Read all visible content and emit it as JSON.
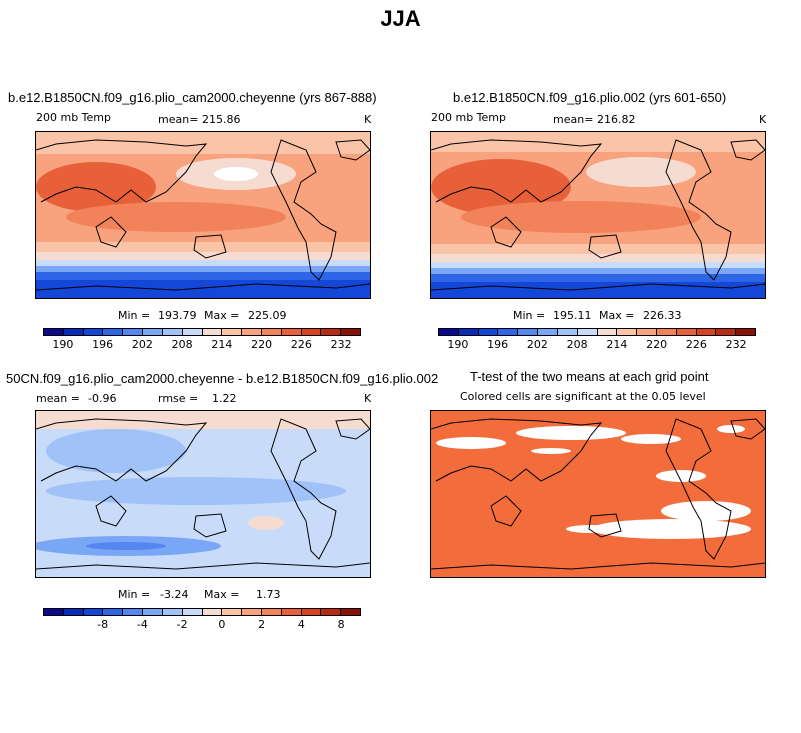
{
  "chart_data": [
    {
      "type": "heatmap",
      "panel": "top-left",
      "title": "b.e12.B1850CN.f09_g16.plio_cam2000.cheyenne (yrs 867-888)",
      "left_label": "200 mb Temp",
      "center_label": "mean=",
      "center_value": "215.86",
      "units": "K",
      "min_label": "Min =",
      "min_value": "193.79",
      "max_label": "Max =",
      "max_value": "225.09",
      "colorbar_ticks": [
        "190",
        "196",
        "202",
        "208",
        "214",
        "220",
        "226",
        "232"
      ],
      "colorbar_levels": [
        187,
        190,
        193,
        196,
        199,
        202,
        205,
        208,
        211,
        214,
        217,
        220,
        223,
        226,
        229,
        232,
        235
      ]
    },
    {
      "type": "heatmap",
      "panel": "top-right",
      "title": "b.e12.B1850CN.f09_g16.plio.002 (yrs 601-650)",
      "left_label": "200 mb Temp",
      "center_label": "mean=",
      "center_value": "216.82",
      "units": "K",
      "min_label": "Min =",
      "min_value": "195.11",
      "max_label": "Max =",
      "max_value": "226.33",
      "colorbar_ticks": [
        "190",
        "196",
        "202",
        "208",
        "214",
        "220",
        "226",
        "232"
      ],
      "colorbar_levels": [
        187,
        190,
        193,
        196,
        199,
        202,
        205,
        208,
        211,
        214,
        217,
        220,
        223,
        226,
        229,
        232,
        235
      ]
    },
    {
      "type": "heatmap",
      "panel": "bottom-left",
      "title": "50CN.f09_g16.plio_cam2000.cheyenne - b.e12.B1850CN.f09_g16.plio.002",
      "left_label": "mean =",
      "left_value": "-0.96",
      "center_label": "rmse =",
      "center_value": "1.22",
      "units": "K",
      "min_label": "Min =",
      "min_value": "-3.24",
      "max_label": "Max =",
      "max_value": "1.73",
      "colorbar_ticks": [
        "-8",
        "-4",
        "-2",
        "0",
        "2",
        "4",
        "8"
      ]
    },
    {
      "type": "heatmap",
      "panel": "bottom-right",
      "title": "T-test of the two means at each grid point",
      "subtitle": "Colored cells are significant at the 0.05 level",
      "significance_level": 0.05
    }
  ],
  "page": {
    "title": "JJA"
  },
  "colors": {
    "palette": [
      "#0a0a8c",
      "#0c2ab8",
      "#1446d8",
      "#2e64e6",
      "#5586f0",
      "#7aa6f6",
      "#a0c2f8",
      "#c8dcfa",
      "#f6dcd0",
      "#fac4a8",
      "#f8a27e",
      "#f2825a",
      "#e8603a",
      "#d64222",
      "#b82a12",
      "#8a1008"
    ],
    "significant": "#f26c3c"
  }
}
